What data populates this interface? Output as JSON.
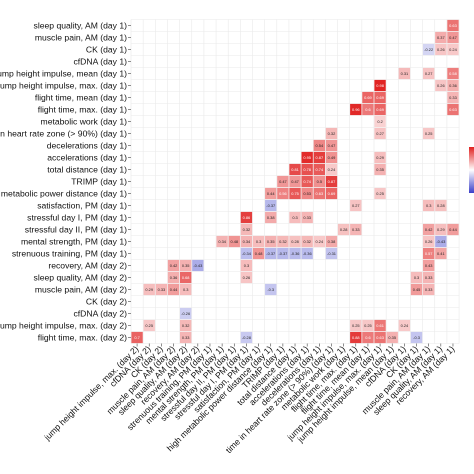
{
  "chart_data": {
    "type": "heatmap",
    "rows": [
      "sleep quality, AM (day 1)",
      "muscle pain, AM (day 1)",
      "CK (day 1)",
      "cfDNA (day 1)",
      "jump height impulse, mean (day 1)",
      "jump height impulse, max. (day 1)",
      "flight time, mean (day 1)",
      "flight time, max. (day 1)",
      "metabolic work (day 1)",
      "time in heart rate zone (> 90%) (day 1)",
      "decelerations (day 1)",
      "accelerations (day 1)",
      "total distance (day 1)",
      "TRIMP (day 1)",
      "high metabolic power distance (day 1)",
      "satisfaction, PM (day 1)",
      "stressful day I, PM (day 1)",
      "stressful day II, PM (day 1)",
      "mental strength, PM (day 1)",
      "strenuous training, PM (day 1)",
      "recovery, AM (day 2)",
      "sleep quality, AM (day 2)",
      "muscle pain, AM (day 2)",
      "CK (day 2)",
      "cfDNA (day 2)",
      "jump height impulse, max. (day 2)",
      "flight time, max. (day 2)"
    ],
    "columns": [
      "jump height impulse, max. (day 2)",
      "cfDNA (day 2)",
      "CK (day 2)",
      "muscle pain, AM (day 2)",
      "sleep quality, AM (day 2)",
      "recovery, AM (day 2)",
      "strenuous training, PM (day 1)",
      "mental strength, PM (day 1)",
      "stressful day II, PM (day 1)",
      "stressful day I, PM (day 1)",
      "satisfaction, PM (day 1)",
      "high metabolic power distance (day 1)",
      "TRIMP (day 1)",
      "total distance (day 1)",
      "accelerations (day 1)",
      "decelerations (day 1)",
      "time in heart rate zone (> 90%) (day 1)",
      "metabolic work (day 1)",
      "flight time, max. (day 1)",
      "flight time, mean (day 1)",
      "jump height impulse, max. (day 1)",
      "jump height impulse, mean (day 1)",
      "cfDNA (day 1)",
      "CK (day 1)",
      "muscle pain, AM (day 1)",
      "sleep quality, AM (day 1)",
      "recovery, AM (day 1)"
    ],
    "cells": [
      {
        "row": 0,
        "col": 26,
        "value": 0.63
      },
      {
        "row": 1,
        "col": 25,
        "value": 0.37
      },
      {
        "row": 1,
        "col": 26,
        "value": 0.47
      },
      {
        "row": 2,
        "col": 24,
        "value": -0.22
      },
      {
        "row": 2,
        "col": 25,
        "value": 0.26
      },
      {
        "row": 2,
        "col": 26,
        "value": 0.24
      },
      {
        "row": 4,
        "col": 22,
        "value": 0.31
      },
      {
        "row": 4,
        "col": 24,
        "value": 0.27
      },
      {
        "row": 4,
        "col": 26,
        "value": 0.58
      },
      {
        "row": 5,
        "col": 20,
        "value": 0.98
      },
      {
        "row": 5,
        "col": 25,
        "value": 0.26
      },
      {
        "row": 5,
        "col": 26,
        "value": 0.36
      },
      {
        "row": 6,
        "col": 19,
        "value": 0.69
      },
      {
        "row": 6,
        "col": 20,
        "value": 0.69
      },
      {
        "row": 6,
        "col": 26,
        "value": 0.33
      },
      {
        "row": 7,
        "col": 18,
        "value": 0.96
      },
      {
        "row": 7,
        "col": 19,
        "value": 0.6
      },
      {
        "row": 7,
        "col": 20,
        "value": 0.69
      },
      {
        "row": 7,
        "col": 26,
        "value": 0.63
      },
      {
        "row": 8,
        "col": 20,
        "value": 0.2
      },
      {
        "row": 9,
        "col": 16,
        "value": 0.32
      },
      {
        "row": 9,
        "col": 20,
        "value": 0.27
      },
      {
        "row": 9,
        "col": 24,
        "value": 0.25
      },
      {
        "row": 10,
        "col": 15,
        "value": 0.54
      },
      {
        "row": 10,
        "col": 16,
        "value": 0.47
      },
      {
        "row": 11,
        "col": 14,
        "value": 0.95
      },
      {
        "row": 11,
        "col": 15,
        "value": 0.87
      },
      {
        "row": 11,
        "col": 16,
        "value": 0.49
      },
      {
        "row": 11,
        "col": 20,
        "value": 0.29
      },
      {
        "row": 12,
        "col": 13,
        "value": 0.81
      },
      {
        "row": 12,
        "col": 14,
        "value": 0.78
      },
      {
        "row": 12,
        "col": 15,
        "value": 0.74
      },
      {
        "row": 12,
        "col": 16,
        "value": 0.24
      },
      {
        "row": 12,
        "col": 20,
        "value": 0.35
      },
      {
        "row": 13,
        "col": 12,
        "value": 0.47
      },
      {
        "row": 13,
        "col": 13,
        "value": 0.47
      },
      {
        "row": 13,
        "col": 14,
        "value": 0.74
      },
      {
        "row": 13,
        "col": 15,
        "value": 0.5
      },
      {
        "row": 13,
        "col": 16,
        "value": 0.87
      },
      {
        "row": 14,
        "col": 11,
        "value": 0.44
      },
      {
        "row": 14,
        "col": 12,
        "value": 0.56
      },
      {
        "row": 14,
        "col": 13,
        "value": 0.75
      },
      {
        "row": 14,
        "col": 14,
        "value": 0.53
      },
      {
        "row": 14,
        "col": 15,
        "value": 0.63
      },
      {
        "row": 14,
        "col": 16,
        "value": 0.69
      },
      {
        "row": 14,
        "col": 20,
        "value": 0.25
      },
      {
        "row": 15,
        "col": 11,
        "value": -0.37
      },
      {
        "row": 15,
        "col": 18,
        "value": 0.27
      },
      {
        "row": 15,
        "col": 24,
        "value": 0.3
      },
      {
        "row": 15,
        "col": 25,
        "value": 0.28
      },
      {
        "row": 16,
        "col": 9,
        "value": 0.86
      },
      {
        "row": 16,
        "col": 11,
        "value": 0.38
      },
      {
        "row": 16,
        "col": 13,
        "value": 0.3
      },
      {
        "row": 16,
        "col": 14,
        "value": 0.33
      },
      {
        "row": 17,
        "col": 9,
        "value": 0.32
      },
      {
        "row": 17,
        "col": 17,
        "value": 0.28
      },
      {
        "row": 17,
        "col": 18,
        "value": 0.33
      },
      {
        "row": 17,
        "col": 24,
        "value": 0.42
      },
      {
        "row": 17,
        "col": 25,
        "value": 0.29
      },
      {
        "row": 17,
        "col": 26,
        "value": 0.44
      },
      {
        "row": 18,
        "col": 7,
        "value": 0.34
      },
      {
        "row": 18,
        "col": 8,
        "value": 0.48
      },
      {
        "row": 18,
        "col": 9,
        "value": 0.34
      },
      {
        "row": 18,
        "col": 10,
        "value": 0.3
      },
      {
        "row": 18,
        "col": 11,
        "value": 0.35
      },
      {
        "row": 18,
        "col": 12,
        "value": 0.32
      },
      {
        "row": 18,
        "col": 13,
        "value": 0.28
      },
      {
        "row": 18,
        "col": 14,
        "value": 0.32
      },
      {
        "row": 18,
        "col": 15,
        "value": 0.24
      },
      {
        "row": 18,
        "col": 16,
        "value": 0.38
      },
      {
        "row": 18,
        "col": 24,
        "value": 0.26
      },
      {
        "row": 18,
        "col": 25,
        "value": -0.43
      },
      {
        "row": 19,
        "col": 9,
        "value": -0.34
      },
      {
        "row": 19,
        "col": 10,
        "value": 0.48
      },
      {
        "row": 19,
        "col": 11,
        "value": -0.37
      },
      {
        "row": 19,
        "col": 12,
        "value": -0.37
      },
      {
        "row": 19,
        "col": 13,
        "value": -0.36
      },
      {
        "row": 19,
        "col": 14,
        "value": -0.36
      },
      {
        "row": 19,
        "col": 16,
        "value": -0.31
      },
      {
        "row": 19,
        "col": 24,
        "value": 0.57
      },
      {
        "row": 19,
        "col": 25,
        "value": 0.41
      },
      {
        "row": 20,
        "col": 3,
        "value": 0.42
      },
      {
        "row": 20,
        "col": 4,
        "value": 0.35
      },
      {
        "row": 20,
        "col": 5,
        "value": -0.43
      },
      {
        "row": 20,
        "col": 9,
        "value": 0.3
      },
      {
        "row": 20,
        "col": 24,
        "value": 0.43
      },
      {
        "row": 21,
        "col": 3,
        "value": 0.36
      },
      {
        "row": 21,
        "col": 4,
        "value": 0.68
      },
      {
        "row": 21,
        "col": 9,
        "value": 0.26
      },
      {
        "row": 21,
        "col": 23,
        "value": 0.3
      },
      {
        "row": 21,
        "col": 24,
        "value": 0.33
      },
      {
        "row": 22,
        "col": 1,
        "value": 0.29
      },
      {
        "row": 22,
        "col": 2,
        "value": 0.33
      },
      {
        "row": 22,
        "col": 3,
        "value": 0.44
      },
      {
        "row": 22,
        "col": 4,
        "value": 0.3
      },
      {
        "row": 22,
        "col": 11,
        "value": -0.3
      },
      {
        "row": 22,
        "col": 23,
        "value": 0.45
      },
      {
        "row": 22,
        "col": 24,
        "value": 0.33
      },
      {
        "row": 24,
        "col": 4,
        "value": -0.26
      },
      {
        "row": 25,
        "col": 1,
        "value": 0.25
      },
      {
        "row": 25,
        "col": 4,
        "value": 0.32
      },
      {
        "row": 25,
        "col": 18,
        "value": 0.25
      },
      {
        "row": 25,
        "col": 19,
        "value": 0.25
      },
      {
        "row": 25,
        "col": 20,
        "value": 0.61
      },
      {
        "row": 25,
        "col": 22,
        "value": 0.24
      },
      {
        "row": 26,
        "col": 0,
        "value": 0.7
      },
      {
        "row": 26,
        "col": 4,
        "value": 0.33
      },
      {
        "row": 26,
        "col": 9,
        "value": -0.28
      },
      {
        "row": 26,
        "col": 18,
        "value": 0.88
      },
      {
        "row": 26,
        "col": 19,
        "value": 0.6
      },
      {
        "row": 26,
        "col": 20,
        "value": 0.63
      },
      {
        "row": 26,
        "col": 21,
        "value": 0.35
      },
      {
        "row": 26,
        "col": 23,
        "value": -0.3
      }
    ],
    "color_scale": {
      "negative": "#3b3fc9",
      "zero": "#ffffff",
      "positive": "#e0201f"
    }
  }
}
